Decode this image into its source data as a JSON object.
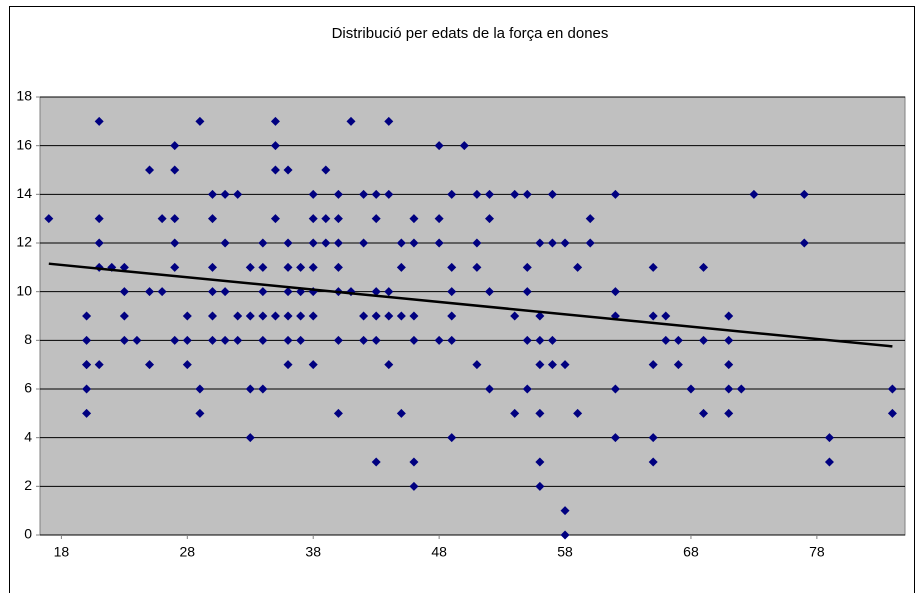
{
  "chart_data": {
    "type": "scatter",
    "title": "Distribució per edats de la força en dones",
    "x": [
      17,
      20,
      20,
      20,
      20,
      20,
      20,
      21,
      21,
      21,
      21,
      21,
      22,
      23,
      23,
      23,
      23,
      24,
      25,
      25,
      25,
      26,
      26,
      27,
      27,
      27,
      27,
      27,
      27,
      28,
      28,
      28,
      29,
      29,
      29,
      30,
      30,
      30,
      30,
      30,
      30,
      31,
      31,
      31,
      31,
      32,
      32,
      32,
      33,
      33,
      33,
      33,
      34,
      34,
      34,
      34,
      34,
      34,
      35,
      35,
      35,
      35,
      35,
      36,
      36,
      36,
      36,
      36,
      36,
      36,
      37,
      37,
      37,
      37,
      38,
      38,
      38,
      38,
      38,
      38,
      38,
      39,
      39,
      39,
      40,
      40,
      40,
      40,
      40,
      40,
      40,
      41,
      41,
      42,
      42,
      42,
      42,
      43,
      43,
      43,
      43,
      43,
      43,
      44,
      44,
      44,
      44,
      44,
      45,
      45,
      45,
      45,
      46,
      46,
      46,
      46,
      46,
      46,
      48,
      48,
      48,
      48,
      49,
      49,
      49,
      49,
      49,
      49,
      50,
      51,
      51,
      51,
      51,
      52,
      52,
      52,
      52,
      54,
      54,
      54,
      55,
      55,
      55,
      55,
      55,
      56,
      56,
      56,
      56,
      56,
      56,
      56,
      57,
      57,
      57,
      57,
      58,
      58,
      58,
      58,
      59,
      59,
      60,
      60,
      62,
      62,
      62,
      62,
      62,
      65,
      65,
      65,
      65,
      65,
      66,
      66,
      67,
      67,
      68,
      69,
      69,
      69,
      71,
      71,
      71,
      71,
      71,
      72,
      73,
      77,
      77,
      79,
      79,
      84,
      84
    ],
    "values": [
      13,
      9,
      8,
      7,
      7,
      6,
      5,
      17,
      13,
      12,
      11,
      7,
      11,
      11,
      10,
      9,
      8,
      8,
      15,
      10,
      7,
      13,
      10,
      16,
      15,
      13,
      12,
      11,
      8,
      9,
      8,
      7,
      17,
      6,
      5,
      14,
      13,
      11,
      10,
      9,
      8,
      14,
      12,
      10,
      8,
      14,
      9,
      8,
      11,
      9,
      6,
      4,
      12,
      11,
      10,
      9,
      8,
      6,
      17,
      16,
      15,
      13,
      9,
      15,
      12,
      11,
      10,
      9,
      8,
      7,
      11,
      10,
      9,
      8,
      14,
      13,
      12,
      11,
      10,
      9,
      7,
      15,
      13,
      12,
      14,
      13,
      12,
      11,
      10,
      8,
      5,
      17,
      10,
      14,
      12,
      9,
      8,
      14,
      13,
      10,
      9,
      8,
      3,
      17,
      14,
      10,
      9,
      7,
      12,
      11,
      9,
      5,
      13,
      12,
      9,
      8,
      3,
      2,
      16,
      13,
      12,
      8,
      14,
      11,
      10,
      9,
      8,
      4,
      16,
      14,
      12,
      11,
      7,
      14,
      13,
      10,
      6,
      14,
      9,
      5,
      14,
      11,
      10,
      8,
      6,
      12,
      9,
      8,
      7,
      5,
      3,
      2,
      14,
      12,
      8,
      7,
      12,
      7,
      1,
      0,
      11,
      5,
      13,
      12,
      14,
      10,
      9,
      6,
      4,
      11,
      9,
      7,
      4,
      3,
      9,
      8,
      8,
      7,
      6,
      11,
      8,
      5,
      9,
      8,
      7,
      6,
      5,
      6,
      14,
      14,
      12,
      4,
      3,
      6,
      5
    ],
    "color": "#000080",
    "trendline": {
      "x": [
        17,
        84
      ],
      "y": [
        11.15,
        7.75
      ],
      "color": "#000000"
    },
    "xlim": [
      16.3,
      85
    ],
    "xticks": [
      18,
      28,
      38,
      48,
      58,
      68,
      78
    ],
    "ylim": [
      0,
      18
    ],
    "yticks": [
      0,
      2,
      4,
      6,
      8,
      10,
      12,
      14,
      16,
      18
    ],
    "grid": true
  }
}
